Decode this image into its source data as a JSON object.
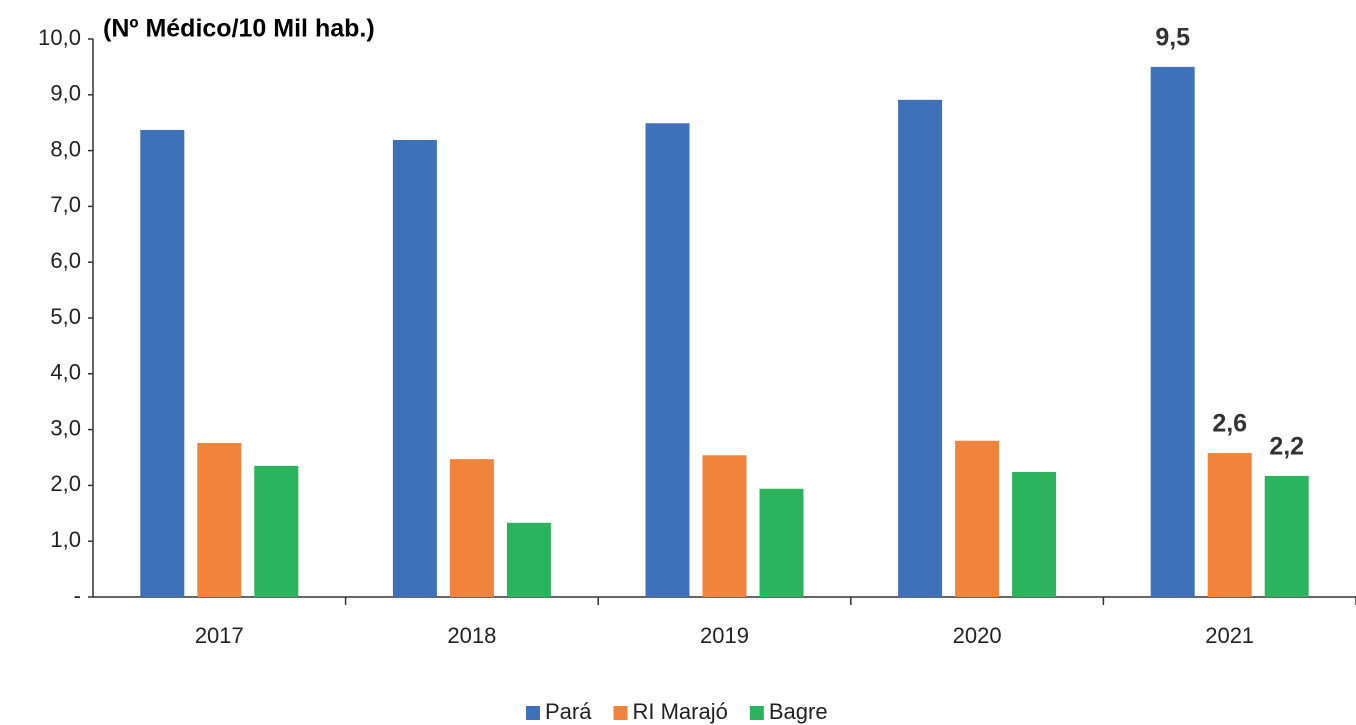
{
  "chart_data": {
    "type": "bar",
    "title": "(Nº Médico/10 Mil hab.)",
    "categories": [
      "2017",
      "2018",
      "2019",
      "2020",
      "2021"
    ],
    "series": [
      {
        "name": "Pará",
        "color": "#3f71b8",
        "values": [
          8.37,
          8.19,
          8.49,
          8.91,
          9.5
        ],
        "value_labels": [
          null,
          null,
          null,
          null,
          "9,5"
        ]
      },
      {
        "name": "RI Marajó",
        "color": "#f0843c",
        "values": [
          2.76,
          2.47,
          2.54,
          2.8,
          2.58
        ],
        "value_labels": [
          null,
          null,
          null,
          null,
          "2,6"
        ]
      },
      {
        "name": "Bagre",
        "color": "#2bb35d",
        "values": [
          2.35,
          1.33,
          1.94,
          2.24,
          2.17
        ],
        "value_labels": [
          null,
          null,
          null,
          null,
          "2,2"
        ]
      }
    ],
    "ylim": [
      0,
      10
    ],
    "yticks": [
      {
        "value": 0,
        "label": "-"
      },
      {
        "value": 1,
        "label": "1,0"
      },
      {
        "value": 2,
        "label": "2,0"
      },
      {
        "value": 3,
        "label": "3,0"
      },
      {
        "value": 4,
        "label": "4,0"
      },
      {
        "value": 5,
        "label": "5,0"
      },
      {
        "value": 6,
        "label": "6,0"
      },
      {
        "value": 7,
        "label": "7,0"
      },
      {
        "value": 8,
        "label": "8,0"
      },
      {
        "value": 9,
        "label": "9,0"
      },
      {
        "value": 10,
        "label": "10,0"
      }
    ],
    "grid": false,
    "legend": "bottom"
  }
}
